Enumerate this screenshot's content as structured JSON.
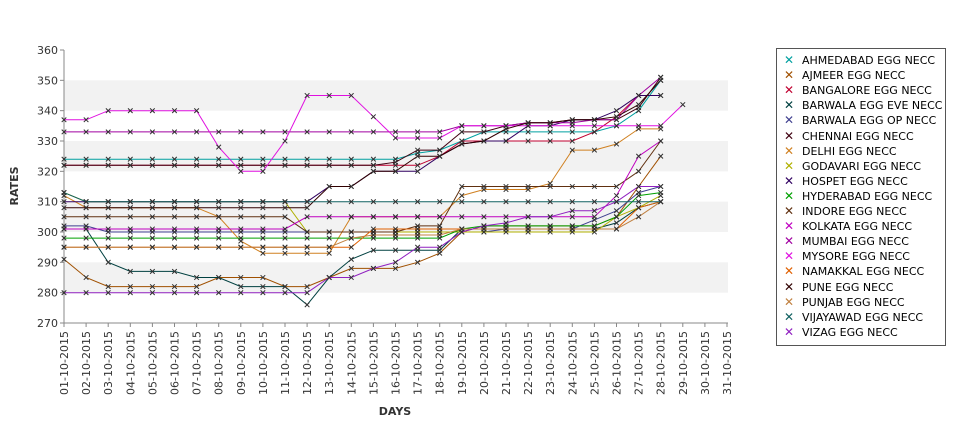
{
  "chart_data": {
    "type": "line",
    "title": "",
    "xlabel": "DAYS",
    "ylabel": "RATES",
    "ylim": [
      270,
      360
    ],
    "yticks": [
      270,
      280,
      290,
      300,
      310,
      320,
      330,
      340,
      350,
      360
    ],
    "grid": "alternating horizontal bands",
    "legend_position": "right",
    "categories": [
      "01-10-2015",
      "02-10-2015",
      "03-10-2015",
      "04-10-2015",
      "05-10-2015",
      "06-10-2015",
      "07-10-2015",
      "08-10-2015",
      "09-10-2015",
      "10-10-2015",
      "11-10-2015",
      "12-10-2015",
      "13-10-2015",
      "14-10-2015",
      "15-10-2015",
      "16-10-2015",
      "17-10-2015",
      "18-10-2015",
      "19-10-2015",
      "20-10-2015",
      "21-10-2015",
      "22-10-2015",
      "23-10-2015",
      "24-10-2015",
      "25-10-2015",
      "26-10-2015",
      "27-10-2015",
      "28-10-2015",
      "29-10-2015",
      "30-10-2015",
      "31-10-2015"
    ],
    "series": [
      {
        "name": "AHMEDABAD EGG NECC",
        "color": "#00a0a0",
        "values": [
          324,
          324,
          324,
          324,
          324,
          324,
          324,
          324,
          324,
          324,
          324,
          324,
          324,
          324,
          324,
          324,
          326,
          327,
          330,
          333,
          333,
          333,
          333,
          333,
          333,
          335,
          340,
          350,
          null,
          null,
          null
        ]
      },
      {
        "name": "AJMEER EGG NECC",
        "color": "#a05000",
        "values": [
          291,
          285,
          282,
          282,
          282,
          282,
          282,
          285,
          285,
          285,
          282,
          282,
          285,
          288,
          288,
          288,
          290,
          293,
          300,
          302,
          302,
          302,
          302,
          302,
          302,
          305,
          315,
          325,
          null,
          null,
          null
        ]
      },
      {
        "name": "BANGALORE EGG NECC",
        "color": "#c00030",
        "values": [
          322,
          322,
          322,
          322,
          322,
          322,
          322,
          322,
          322,
          322,
          322,
          322,
          322,
          322,
          322,
          322,
          322,
          325,
          330,
          330,
          330,
          330,
          330,
          330,
          333,
          338,
          345,
          345,
          null,
          null,
          null
        ]
      },
      {
        "name": "BARWALA EGG EVE NECC",
        "color": "#004040",
        "values": [
          301,
          301,
          290,
          287,
          287,
          287,
          285,
          285,
          282,
          282,
          282,
          276,
          285,
          291,
          294,
          294,
          294,
          294,
          301,
          301,
          301,
          301,
          301,
          301,
          301,
          303,
          308,
          310,
          null,
          null,
          null
        ]
      },
      {
        "name": "BARWALA EGG OP NECC",
        "color": "#404090",
        "values": [
          302,
          302,
          300,
          300,
          300,
          300,
          300,
          300,
          300,
          300,
          300,
          300,
          300,
          300,
          300,
          300,
          300,
          300,
          300,
          300,
          301,
          301,
          301,
          301,
          304,
          307,
          313,
          315,
          null,
          null,
          null
        ]
      },
      {
        "name": "CHENNAI EGG NECC",
        "color": "#400010",
        "values": [
          322,
          322,
          322,
          322,
          322,
          322,
          322,
          322,
          322,
          322,
          322,
          322,
          322,
          322,
          322,
          323,
          327,
          327,
          333,
          333,
          335,
          336,
          336,
          337,
          337,
          337,
          341,
          351,
          null,
          null,
          null
        ]
      },
      {
        "name": "DELHI EGG NECC",
        "color": "#d08020",
        "values": [
          312,
          308,
          308,
          308,
          308,
          308,
          308,
          305,
          297,
          293,
          293,
          293,
          293,
          305,
          305,
          305,
          305,
          305,
          312,
          314,
          314,
          314,
          316,
          327,
          327,
          329,
          334,
          334,
          null,
          null,
          null
        ]
      },
      {
        "name": "GODAVARI EGG NECC",
        "color": "#b0b000",
        "values": [
          313,
          310,
          310,
          310,
          310,
          310,
          310,
          310,
          310,
          310,
          310,
          300,
          300,
          300,
          300,
          300,
          300,
          300,
          300,
          300,
          300,
          300,
          300,
          300,
          300,
          305,
          308,
          312,
          null,
          null,
          null
        ]
      },
      {
        "name": "HOSPET EGG NECC",
        "color": "#300060",
        "values": [
          310,
          310,
          310,
          310,
          310,
          310,
          310,
          310,
          310,
          310,
          310,
          310,
          315,
          315,
          320,
          320,
          320,
          325,
          329,
          330,
          330,
          335,
          335,
          337,
          337,
          340,
          345,
          345,
          null,
          null,
          null
        ]
      },
      {
        "name": "HYDERABAD EGG NECC",
        "color": "#00a000",
        "values": [
          298,
          298,
          298,
          298,
          298,
          298,
          298,
          298,
          298,
          298,
          298,
          298,
          298,
          298,
          298,
          298,
          298,
          298,
          301,
          302,
          302,
          302,
          302,
          302,
          302,
          305,
          312,
          313,
          null,
          null,
          null
        ]
      },
      {
        "name": "INDORE EGG NECC",
        "color": "#603010",
        "values": [
          305,
          305,
          305,
          305,
          305,
          305,
          305,
          305,
          305,
          305,
          305,
          300,
          300,
          300,
          300,
          300,
          302,
          302,
          315,
          315,
          315,
          315,
          315,
          315,
          315,
          315,
          320,
          330,
          null,
          null,
          null
        ]
      },
      {
        "name": "KOLKATA EGG NECC",
        "color": "#c000c0",
        "values": [
          301,
          301,
          301,
          301,
          301,
          301,
          301,
          301,
          301,
          301,
          301,
          305,
          305,
          305,
          305,
          305,
          305,
          305,
          305,
          305,
          305,
          305,
          305,
          305,
          305,
          312,
          325,
          330,
          null,
          null,
          null
        ]
      },
      {
        "name": "MUMBAI EGG NECC",
        "color": "#a000a0",
        "values": [
          333,
          333,
          333,
          333,
          333,
          333,
          333,
          333,
          333,
          333,
          333,
          333,
          333,
          333,
          333,
          333,
          333,
          333,
          335,
          335,
          335,
          336,
          336,
          336,
          337,
          337,
          345,
          351,
          null,
          null,
          null
        ]
      },
      {
        "name": "MYSORE EGG NECC",
        "color": "#e010e0",
        "values": [
          337,
          337,
          340,
          340,
          340,
          340,
          340,
          328,
          320,
          320,
          330,
          345,
          345,
          345,
          338,
          331,
          331,
          331,
          335,
          335,
          335,
          335,
          335,
          335,
          335,
          335,
          335,
          335,
          342,
          null,
          null
        ]
      },
      {
        "name": "NAMAKKAL EGG NECC",
        "color": "#e06000",
        "values": [
          295,
          295,
          295,
          295,
          295,
          295,
          295,
          295,
          295,
          295,
          295,
          295,
          295,
          295,
          301,
          301,
          301,
          301,
          301,
          301,
          301,
          301,
          301,
          301,
          301,
          301,
          308,
          310,
          null,
          null,
          null
        ]
      },
      {
        "name": "PUNE EGG NECC",
        "color": "#300000",
        "values": [
          308,
          308,
          308,
          308,
          308,
          308,
          308,
          308,
          308,
          308,
          308,
          308,
          315,
          315,
          320,
          320,
          325,
          325,
          329,
          330,
          334,
          336,
          336,
          337,
          337,
          338,
          342,
          350,
          null,
          null,
          null
        ]
      },
      {
        "name": "PUNJAB EGG NECC",
        "color": "#c08040",
        "values": [
          295,
          295,
          295,
          295,
          295,
          295,
          295,
          295,
          295,
          295,
          295,
          295,
          295,
          298,
          299,
          299,
          299,
          299,
          301,
          301,
          301,
          301,
          301,
          301,
          301,
          301,
          305,
          310,
          null,
          null,
          null
        ]
      },
      {
        "name": "VIJAYAWAD EGG NECC",
        "color": "#106060",
        "values": [
          313,
          310,
          310,
          310,
          310,
          310,
          310,
          310,
          310,
          310,
          310,
          310,
          310,
          310,
          310,
          310,
          310,
          310,
          310,
          310,
          310,
          310,
          310,
          310,
          310,
          310,
          310,
          310,
          null,
          null,
          null
        ]
      },
      {
        "name": "VIZAG EGG NECC",
        "color": "#9020c0",
        "values": [
          280,
          280,
          280,
          280,
          280,
          280,
          280,
          280,
          280,
          280,
          280,
          280,
          285,
          285,
          288,
          290,
          295,
          295,
          300,
          302,
          303,
          305,
          305,
          307,
          307,
          310,
          315,
          315,
          null,
          null,
          null
        ]
      }
    ]
  }
}
